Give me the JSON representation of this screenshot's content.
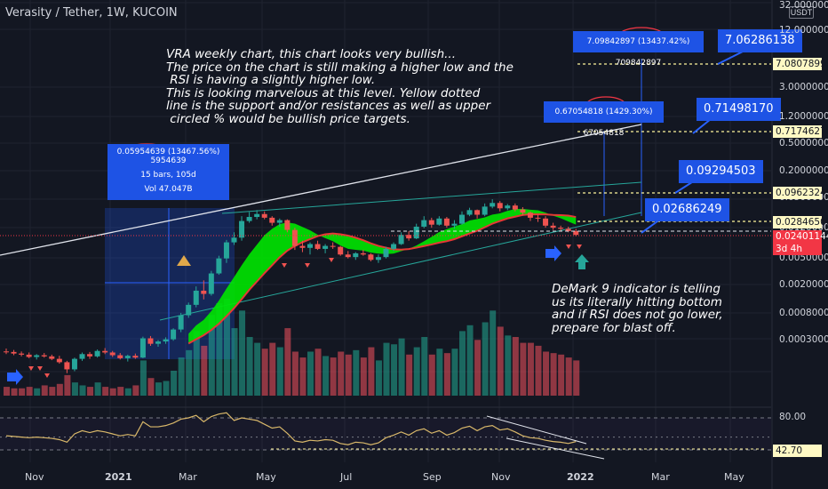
{
  "header": {
    "title": "Verasity / Tether, 1W, KUCOIN"
  },
  "note": {
    "line1": "VRA weekly chart, this chart looks very bullish...",
    "line2": "The price on the chart is still making a higher low and the",
    "line3": " RSI is having a slightly higher low.",
    "line4": "This is looking marvelous at this level. Yellow dotted",
    "line5": "line is the support and/or resistances as well as upper",
    "line6": " circled % would be bullish price targets."
  },
  "note2": {
    "line1": "DeMark 9 indicator is telling",
    "line2": "us its literally hitting bottom",
    "line3": "and if RSI does not go lower,",
    "line4": "prepare for blast off."
  },
  "measure": {
    "main": {
      "line1": "0.05954639 (13467.56%) 5954639",
      "line2": "15 bars, 105d",
      "line3": "Vol 47.047B"
    },
    "m2": "0.67054818 (1429.30%) 67054818",
    "m3": "7.09842897 (13437.42%) 709842897"
  },
  "callouts": {
    "c1": "7.06286138",
    "c2": "0.71498170",
    "c3": "0.09294503",
    "c4": "0.02686249"
  },
  "price_axis": {
    "currency": "USDT",
    "ticks": [
      "32.00000000",
      "12.00000000",
      "3.00000000",
      "1.20000000",
      "0.50000000",
      "0.20000000",
      "0.05000000",
      "0.01200000",
      "0.00500000",
      "0.00200000",
      "0.00080000",
      "0.00030000"
    ],
    "rsi_ticks": [
      "80.00"
    ]
  },
  "price_labels": [
    {
      "text": "7.08078999",
      "bg": "#fff9c4",
      "color": "#131722"
    },
    {
      "text": "0.71746278",
      "bg": "#fff9c4",
      "color": "#131722"
    },
    {
      "text": "0.09623249",
      "bg": "#fff9c4",
      "color": "#131722"
    },
    {
      "text": "0.02846500",
      "bg": "#fff9c4",
      "color": "#131722"
    },
    {
      "text": "0.02401144",
      "bg": "#f23645",
      "color": "#ffffff"
    },
    {
      "text": "3d 4h",
      "bg": "#f23645",
      "color": "#ffffff"
    },
    {
      "text": "42.70",
      "bg": "#fff9c4",
      "color": "#131722"
    }
  ],
  "time_axis": [
    "Nov",
    "2021",
    "Mar",
    "May",
    "Jul",
    "Sep",
    "Nov",
    "2022",
    "Mar",
    "May"
  ],
  "chart_data": {
    "type": "candlestick",
    "title": "Verasity / Tether, 1W, KUCOIN",
    "y_scale": "log",
    "x": "weekly",
    "ohlc": [
      [
        0.00063,
        0.00069,
        0.00058,
        0.00062
      ],
      [
        0.00062,
        0.00066,
        0.00056,
        0.00059
      ],
      [
        0.00059,
        0.00063,
        0.00054,
        0.00057
      ],
      [
        0.00057,
        0.00061,
        0.00051,
        0.00053
      ],
      [
        0.00053,
        0.00058,
        0.00049,
        0.00056
      ],
      [
        0.00056,
        0.0006,
        0.00052,
        0.00054
      ],
      [
        0.00054,
        0.00057,
        0.00048,
        0.0005
      ],
      [
        0.0005,
        0.00055,
        0.00043,
        0.00045
      ],
      [
        0.00045,
        0.00047,
        0.00032,
        0.00036
      ],
      [
        0.00036,
        0.00052,
        0.00034,
        0.0005
      ],
      [
        0.0005,
        0.00061,
        0.00047,
        0.00058
      ],
      [
        0.00058,
        0.00062,
        0.0005,
        0.00054
      ],
      [
        0.00054,
        0.00067,
        0.00052,
        0.00064
      ],
      [
        0.00064,
        0.0007,
        0.00058,
        0.00061
      ],
      [
        0.00061,
        0.00064,
        0.00053,
        0.00056
      ],
      [
        0.00056,
        0.0006,
        0.00049,
        0.00051
      ],
      [
        0.00051,
        0.00057,
        0.00046,
        0.00055
      ],
      [
        0.00055,
        0.00059,
        0.0005,
        0.00052
      ],
      [
        0.00052,
        0.001,
        0.00051,
        0.00095
      ],
      [
        0.00095,
        0.00102,
        0.00075,
        0.0008
      ],
      [
        0.0008,
        0.0009,
        0.00073,
        0.00086
      ],
      [
        0.00086,
        0.00098,
        0.0008,
        0.00092
      ],
      [
        0.00092,
        0.0013,
        0.00088,
        0.00125
      ],
      [
        0.00125,
        0.0021,
        0.00115,
        0.00195
      ],
      [
        0.00195,
        0.0029,
        0.0018,
        0.0027
      ],
      [
        0.0027,
        0.0048,
        0.0025,
        0.0042
      ],
      [
        0.0042,
        0.0058,
        0.0032,
        0.0038
      ],
      [
        0.0038,
        0.0078,
        0.0036,
        0.0072
      ],
      [
        0.0072,
        0.0125,
        0.0069,
        0.0115
      ],
      [
        0.0115,
        0.0205,
        0.01,
        0.019
      ],
      [
        0.019,
        0.026,
        0.0175,
        0.022
      ],
      [
        0.022,
        0.043,
        0.02,
        0.037
      ],
      [
        0.037,
        0.049,
        0.035,
        0.042
      ],
      [
        0.042,
        0.052,
        0.039,
        0.046
      ],
      [
        0.046,
        0.05,
        0.039,
        0.041
      ],
      [
        0.041,
        0.043,
        0.032,
        0.035
      ],
      [
        0.035,
        0.04,
        0.031,
        0.038
      ],
      [
        0.038,
        0.039,
        0.026,
        0.028
      ],
      [
        0.028,
        0.03,
        0.015,
        0.017
      ],
      [
        0.017,
        0.02,
        0.014,
        0.016
      ],
      [
        0.016,
        0.019,
        0.013,
        0.018
      ],
      [
        0.018,
        0.02,
        0.015,
        0.0155
      ],
      [
        0.0155,
        0.018,
        0.0135,
        0.017
      ],
      [
        0.017,
        0.019,
        0.0155,
        0.0165
      ],
      [
        0.0165,
        0.017,
        0.0125,
        0.013
      ],
      [
        0.013,
        0.0145,
        0.0115,
        0.012
      ],
      [
        0.012,
        0.014,
        0.011,
        0.0135
      ],
      [
        0.0135,
        0.015,
        0.0125,
        0.013
      ],
      [
        0.013,
        0.0135,
        0.0105,
        0.011
      ],
      [
        0.011,
        0.013,
        0.01,
        0.012
      ],
      [
        0.012,
        0.0165,
        0.0115,
        0.0155
      ],
      [
        0.0155,
        0.019,
        0.0145,
        0.018
      ],
      [
        0.018,
        0.026,
        0.0175,
        0.024
      ],
      [
        0.024,
        0.027,
        0.02,
        0.0215
      ],
      [
        0.0215,
        0.034,
        0.021,
        0.031
      ],
      [
        0.031,
        0.043,
        0.0295,
        0.038
      ],
      [
        0.038,
        0.041,
        0.03,
        0.033
      ],
      [
        0.033,
        0.043,
        0.032,
        0.04
      ],
      [
        0.04,
        0.042,
        0.03,
        0.032
      ],
      [
        0.032,
        0.038,
        0.029,
        0.034
      ],
      [
        0.034,
        0.05,
        0.033,
        0.045
      ],
      [
        0.045,
        0.056,
        0.043,
        0.052
      ],
      [
        0.052,
        0.053,
        0.04,
        0.045
      ],
      [
        0.045,
        0.064,
        0.043,
        0.058
      ],
      [
        0.058,
        0.073,
        0.055,
        0.065
      ],
      [
        0.065,
        0.069,
        0.05,
        0.055
      ],
      [
        0.055,
        0.063,
        0.052,
        0.06
      ],
      [
        0.06,
        0.064,
        0.05,
        0.053
      ],
      [
        0.053,
        0.057,
        0.044,
        0.048
      ],
      [
        0.048,
        0.05,
        0.037,
        0.041
      ],
      [
        0.041,
        0.045,
        0.036,
        0.04
      ],
      [
        0.04,
        0.043,
        0.03,
        0.032
      ],
      [
        0.032,
        0.035,
        0.028,
        0.03
      ],
      [
        0.03,
        0.032,
        0.027,
        0.029
      ],
      [
        0.029,
        0.031,
        0.026,
        0.027
      ],
      [
        0.027,
        0.029,
        0.023,
        0.024
      ]
    ],
    "volume": [
      6,
      5,
      5,
      6,
      5,
      7,
      6,
      8,
      14,
      9,
      7,
      6,
      9,
      6,
      5,
      6,
      5,
      7,
      24,
      12,
      9,
      10,
      17,
      26,
      31,
      44,
      34,
      55,
      63,
      66,
      46,
      58,
      40,
      36,
      32,
      36,
      33,
      46,
      30,
      26,
      30,
      32,
      27,
      26,
      30,
      28,
      31,
      26,
      33,
      24,
      36,
      35,
      39,
      28,
      33,
      40,
      28,
      32,
      29,
      32,
      44,
      48,
      38,
      50,
      58,
      47,
      41,
      40,
      36,
      36,
      34,
      30,
      29,
      28,
      26,
      24
    ],
    "rsi": [
      52,
      51,
      50,
      49,
      50,
      49,
      48,
      46,
      42,
      55,
      60,
      57,
      60,
      58,
      55,
      52,
      54,
      52,
      74,
      66,
      66,
      68,
      72,
      78,
      80,
      84,
      74,
      82,
      86,
      88,
      76,
      80,
      78,
      76,
      70,
      64,
      66,
      56,
      44,
      42,
      45,
      44,
      46,
      45,
      40,
      38,
      42,
      41,
      38,
      41,
      49,
      53,
      58,
      53,
      60,
      63,
      56,
      60,
      53,
      57,
      64,
      67,
      60,
      66,
      68,
      61,
      63,
      58,
      52,
      49,
      48,
      45,
      43,
      42,
      40,
      43
    ],
    "support_levels": [
      7.08078999,
      0.71746278,
      0.09623249,
      0.028465
    ],
    "last_price": 0.02401144,
    "rsi_last": 42.7
  }
}
